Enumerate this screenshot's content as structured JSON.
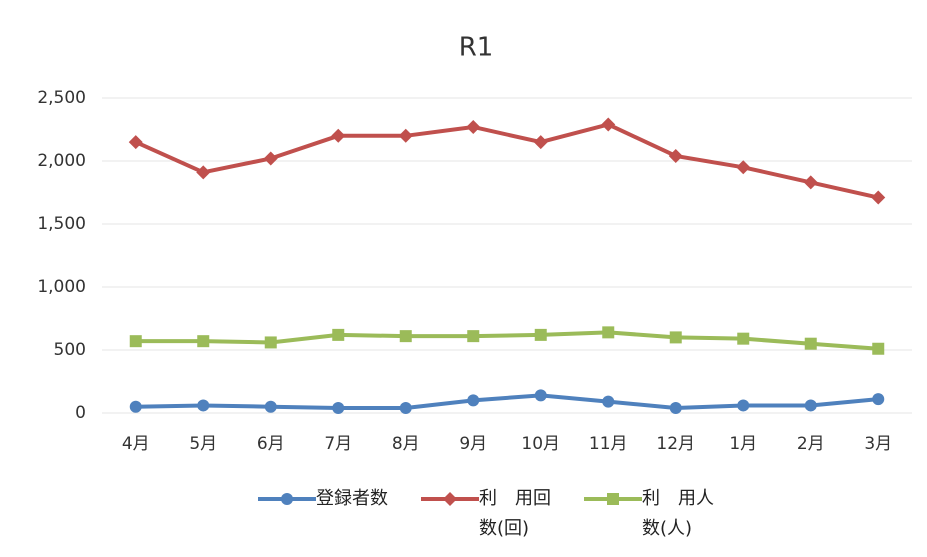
{
  "chart_data": {
    "type": "line",
    "title": "R1",
    "categories": [
      "4月",
      "5月",
      "6月",
      "7月",
      "8月",
      "9月",
      "10月",
      "11月",
      "12月",
      "1月",
      "2月",
      "3月"
    ],
    "series": [
      {
        "name": "登録者数",
        "color": "#4f81bd",
        "marker": "circle",
        "values": [
          50,
          60,
          50,
          40,
          40,
          100,
          140,
          90,
          40,
          60,
          60,
          110
        ]
      },
      {
        "name": "利　用回数(回)",
        "color": "#c0504d",
        "marker": "diamond",
        "values": [
          2150,
          1910,
          2020,
          2200,
          2200,
          2270,
          2150,
          2290,
          2040,
          1950,
          1830,
          1710
        ]
      },
      {
        "name": "利　用人数(人)",
        "color": "#9bbb59",
        "marker": "square",
        "values": [
          570,
          570,
          560,
          620,
          610,
          610,
          620,
          640,
          600,
          590,
          550,
          510
        ]
      }
    ],
    "ylim": [
      0,
      2500
    ],
    "yticks": [
      0,
      500,
      {
        "value": 1000,
        "label": "1,000"
      },
      {
        "value": 1500,
        "label": "1,500"
      },
      {
        "value": 2000,
        "label": "2,000"
      },
      {
        "value": 2500,
        "label": "2,500"
      }
    ],
    "grid": true,
    "legend": "bottom"
  }
}
